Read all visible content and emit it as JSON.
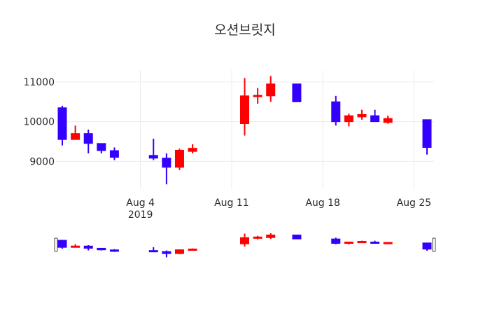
{
  "chart_data": {
    "type": "candlestick",
    "title": "오션브릿지",
    "xlabel": "",
    "ylabel": "",
    "ylim": [
      8300,
      11300
    ],
    "xlim": [
      "2019-07-29",
      "2019-08-26"
    ],
    "y_ticks": [
      9000,
      10000,
      11000
    ],
    "x_ticks": [
      {
        "date": "2019-08-04",
        "label": "Aug 4",
        "sublabel": "2019"
      },
      {
        "date": "2019-08-11",
        "label": "Aug 11"
      },
      {
        "date": "2019-08-18",
        "label": "Aug 18"
      },
      {
        "date": "2019-08-25",
        "label": "Aug 25"
      }
    ],
    "increasing_color": "#ff0000",
    "decreasing_color": "#3300ff",
    "grid": true,
    "rangeslider": true,
    "candles": [
      {
        "date": "2019-07-29",
        "open": 10350,
        "high": 10400,
        "low": 9400,
        "close": 9550
      },
      {
        "date": "2019-07-30",
        "open": 9550,
        "high": 9900,
        "low": 9550,
        "close": 9700
      },
      {
        "date": "2019-07-31",
        "open": 9700,
        "high": 9800,
        "low": 9200,
        "close": 9450
      },
      {
        "date": "2019-08-01",
        "open": 9450,
        "high": 9450,
        "low": 9200,
        "close": 9270
      },
      {
        "date": "2019-08-02",
        "open": 9270,
        "high": 9350,
        "low": 9030,
        "close": 9100
      },
      {
        "date": "2019-08-05",
        "open": 9150,
        "high": 9570,
        "low": 9030,
        "close": 9080
      },
      {
        "date": "2019-08-06",
        "open": 9080,
        "high": 9200,
        "low": 8420,
        "close": 8850
      },
      {
        "date": "2019-08-07",
        "open": 8850,
        "high": 9320,
        "low": 8780,
        "close": 9280
      },
      {
        "date": "2019-08-08",
        "open": 9250,
        "high": 9430,
        "low": 9200,
        "close": 9330
      },
      {
        "date": "2019-08-12",
        "open": 9950,
        "high": 11100,
        "low": 9650,
        "close": 10650
      },
      {
        "date": "2019-08-13",
        "open": 10630,
        "high": 10850,
        "low": 10450,
        "close": 10660
      },
      {
        "date": "2019-08-14",
        "open": 10650,
        "high": 11150,
        "low": 10500,
        "close": 10950
      },
      {
        "date": "2019-08-16",
        "open": 10950,
        "high": 10950,
        "low": 10500,
        "close": 10500
      },
      {
        "date": "2019-08-19",
        "open": 10500,
        "high": 10650,
        "low": 9900,
        "close": 10000
      },
      {
        "date": "2019-08-20",
        "open": 10000,
        "high": 10200,
        "low": 9880,
        "close": 10150
      },
      {
        "date": "2019-08-21",
        "open": 10120,
        "high": 10300,
        "low": 10050,
        "close": 10180
      },
      {
        "date": "2019-08-22",
        "open": 10150,
        "high": 10300,
        "low": 10000,
        "close": 10000
      },
      {
        "date": "2019-08-23",
        "open": 9980,
        "high": 10150,
        "low": 9950,
        "close": 10080
      },
      {
        "date": "2019-08-26",
        "open": 10050,
        "high": 10050,
        "low": 9170,
        "close": 9350
      }
    ]
  }
}
